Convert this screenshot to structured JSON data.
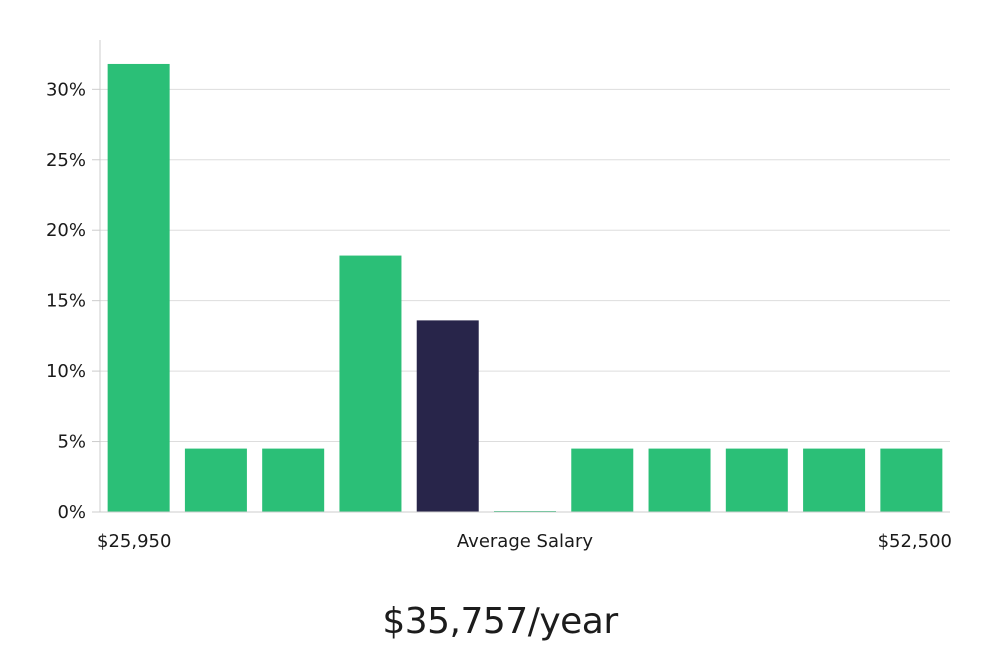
{
  "chart_data": {
    "type": "bar",
    "title": "",
    "xlabel": "Average Salary",
    "ylabel": "",
    "x_min_label": "$25,950",
    "x_max_label": "$52,500",
    "categories": [
      "bin-1",
      "bin-2",
      "bin-3",
      "bin-4",
      "bin-5",
      "bin-6",
      "bin-7",
      "bin-8",
      "bin-9",
      "bin-10",
      "bin-11"
    ],
    "values": [
      31.8,
      4.5,
      4.5,
      18.2,
      13.6,
      0,
      4.5,
      4.5,
      4.5,
      4.5,
      4.5
    ],
    "highlight_index": 4,
    "ylim": [
      0,
      33.5
    ],
    "yticks": [
      0,
      5,
      10,
      15,
      20,
      25,
      30
    ],
    "ytick_labels": [
      "0%",
      "5%",
      "10%",
      "15%",
      "20%",
      "25%",
      "30%"
    ],
    "grid": true,
    "colors": {
      "bar": "#2bbf77",
      "highlight": "#28254a",
      "grid": "#dddddd",
      "axis": "#cccccc"
    }
  },
  "summary": {
    "average_salary": "$35,757/year"
  }
}
